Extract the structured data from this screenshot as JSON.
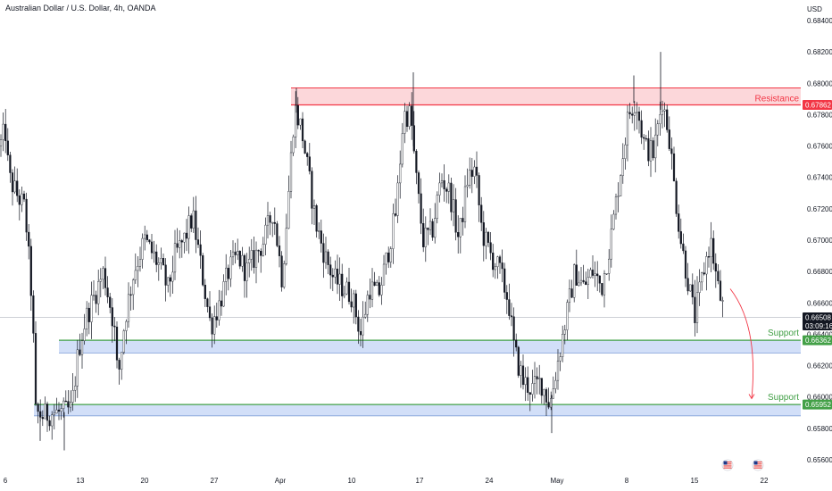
{
  "header": {
    "title": "Australian Dollar / U.S. Dollar, 4h, OANDA"
  },
  "axis": {
    "currency": "USD"
  },
  "colors": {
    "up": "#131722",
    "resistance": "#f23645",
    "resistance_fill": "#fbd0d3",
    "support": "#43a047",
    "support_fill": "#cddbf7",
    "arrow": "#f23645",
    "price_tag": "#131722"
  },
  "chart_data": {
    "type": "candlestick",
    "ylim": [
      0.6555,
      0.6852
    ],
    "y_ticks": [
      "0.65600",
      "0.65800",
      "0.66000",
      "0.66200",
      "0.66400",
      "0.66600",
      "0.66800",
      "0.67000",
      "0.67200",
      "0.67400",
      "0.67600",
      "0.67800",
      "0.68000",
      "0.68200",
      "0.68400"
    ],
    "x_ticks": [
      "6",
      "13",
      "20",
      "27",
      "Apr",
      "10",
      "17",
      "24",
      "May",
      "8",
      "15",
      "22"
    ],
    "resistance": {
      "label": "Resistance",
      "low": 0.67862,
      "high": 0.6797,
      "value_label": "0.67862",
      "from": "Apr"
    },
    "supports": [
      {
        "label": "Support",
        "low": 0.6628,
        "high": 0.66362,
        "value_label": "0.66362",
        "from": "6"
      },
      {
        "label": "Support",
        "low": 0.6588,
        "high": 0.65952,
        "value_label": "0.65952",
        "from": "6"
      }
    ],
    "last_price": {
      "value": 0.66508,
      "label": "0.66508",
      "countdown": "03:09:16"
    },
    "forecast_arrow": {
      "from": 0.6669,
      "to": 0.6599,
      "direction": "down"
    },
    "waypoints": [
      [
        0,
        0.676
      ],
      [
        6,
        0.677
      ],
      [
        10,
        0.674
      ],
      [
        18,
        0.673
      ],
      [
        28,
        0.672
      ],
      [
        36,
        0.666
      ],
      [
        40,
        0.659
      ],
      [
        48,
        0.6588
      ],
      [
        58,
        0.659
      ],
      [
        70,
        0.659
      ],
      [
        80,
        0.6592
      ],
      [
        88,
        0.663
      ],
      [
        96,
        0.665
      ],
      [
        106,
        0.6665
      ],
      [
        116,
        0.668
      ],
      [
        128,
        0.6645
      ],
      [
        132,
        0.661
      ],
      [
        140,
        0.665
      ],
      [
        150,
        0.668
      ],
      [
        162,
        0.67
      ],
      [
        172,
        0.669
      ],
      [
        182,
        0.668
      ],
      [
        188,
        0.6668
      ],
      [
        196,
        0.669
      ],
      [
        206,
        0.67
      ],
      [
        216,
        0.6715
      ],
      [
        226,
        0.668
      ],
      [
        236,
        0.6645
      ],
      [
        246,
        0.666
      ],
      [
        256,
        0.668
      ],
      [
        266,
        0.669
      ],
      [
        276,
        0.668
      ],
      [
        286,
        0.669
      ],
      [
        296,
        0.67
      ],
      [
        306,
        0.672
      ],
      [
        316,
        0.6675
      ],
      [
        322,
        0.672
      ],
      [
        330,
        0.6785
      ],
      [
        338,
        0.677
      ],
      [
        346,
        0.674
      ],
      [
        354,
        0.671
      ],
      [
        364,
        0.669
      ],
      [
        374,
        0.6675
      ],
      [
        384,
        0.667
      ],
      [
        394,
        0.6665
      ],
      [
        404,
        0.664
      ],
      [
        414,
        0.667
      ],
      [
        424,
        0.6665
      ],
      [
        434,
        0.669
      ],
      [
        444,
        0.672
      ],
      [
        452,
        0.678
      ],
      [
        460,
        0.678
      ],
      [
        466,
        0.674
      ],
      [
        474,
        0.67
      ],
      [
        484,
        0.6705
      ],
      [
        494,
        0.674
      ],
      [
        504,
        0.673
      ],
      [
        514,
        0.67
      ],
      [
        524,
        0.674
      ],
      [
        532,
        0.6745
      ],
      [
        540,
        0.6705
      ],
      [
        550,
        0.669
      ],
      [
        560,
        0.668
      ],
      [
        570,
        0.666
      ],
      [
        576,
        0.663
      ],
      [
        586,
        0.661
      ],
      [
        596,
        0.6605
      ],
      [
        606,
        0.661
      ],
      [
        616,
        0.6595
      ],
      [
        624,
        0.662
      ],
      [
        634,
        0.665
      ],
      [
        644,
        0.668
      ],
      [
        654,
        0.667
      ],
      [
        664,
        0.668
      ],
      [
        674,
        0.667
      ],
      [
        684,
        0.67
      ],
      [
        694,
        0.674
      ],
      [
        704,
        0.678
      ],
      [
        712,
        0.679
      ],
      [
        722,
        0.676
      ],
      [
        732,
        0.6755
      ],
      [
        742,
        0.679
      ],
      [
        750,
        0.6765
      ],
      [
        756,
        0.673
      ],
      [
        764,
        0.6695
      ],
      [
        772,
        0.667
      ],
      [
        778,
        0.665
      ],
      [
        788,
        0.668
      ],
      [
        796,
        0.67
      ],
      [
        804,
        0.667
      ],
      [
        812,
        0.6652
      ]
    ]
  },
  "toolbar": {
    "event_icons": [
      "us-flag-event-icon",
      "us-flag-event-icon"
    ]
  }
}
